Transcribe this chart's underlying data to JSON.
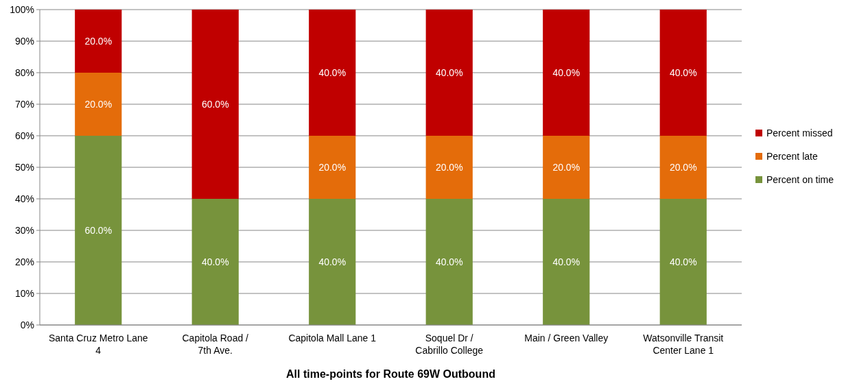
{
  "chart_data": {
    "type": "bar",
    "stacked": true,
    "xlabel": "All time-points for Route 69W Outbound",
    "categories": [
      "Santa Cruz Metro Lane\n4",
      "Capitola Road /\n7th Ave.",
      "Capitola Mall Lane 1",
      "Soquel Dr /\nCabrillo College",
      "Main / Green Valley",
      "Watsonville Transit\nCenter Lane 1"
    ],
    "series": [
      {
        "name": "Percent on time",
        "color": "#77933c",
        "values": [
          60,
          40,
          40,
          40,
          40,
          40
        ],
        "value_labels": [
          "60.0%",
          "40.0%",
          "40.0%",
          "40.0%",
          "40.0%",
          "40.0%"
        ]
      },
      {
        "name": "Percent late",
        "color": "#e46c0a",
        "values": [
          20,
          0,
          20,
          20,
          20,
          20
        ],
        "value_labels": [
          "20.0%",
          null,
          "20.0%",
          "20.0%",
          "20.0%",
          "20.0%"
        ]
      },
      {
        "name": "Percent missed",
        "color": "#c00000",
        "values": [
          20,
          60,
          40,
          40,
          40,
          40
        ],
        "value_labels": [
          "20.0%",
          "60.0%",
          "40.0%",
          "40.0%",
          "40.0%",
          "40.0%"
        ]
      }
    ],
    "ylim": [
      0,
      100
    ],
    "yticks": [
      {
        "value": 0,
        "label": "0%"
      },
      {
        "value": 10,
        "label": "10%"
      },
      {
        "value": 20,
        "label": "20%"
      },
      {
        "value": 30,
        "label": "30%"
      },
      {
        "value": 40,
        "label": "40%"
      },
      {
        "value": 50,
        "label": "50%"
      },
      {
        "value": 60,
        "label": "60%"
      },
      {
        "value": 70,
        "label": "70%"
      },
      {
        "value": 80,
        "label": "80%"
      },
      {
        "value": 90,
        "label": "90%"
      },
      {
        "value": 100,
        "label": "100%"
      }
    ],
    "grid": "y",
    "legend": "right"
  }
}
